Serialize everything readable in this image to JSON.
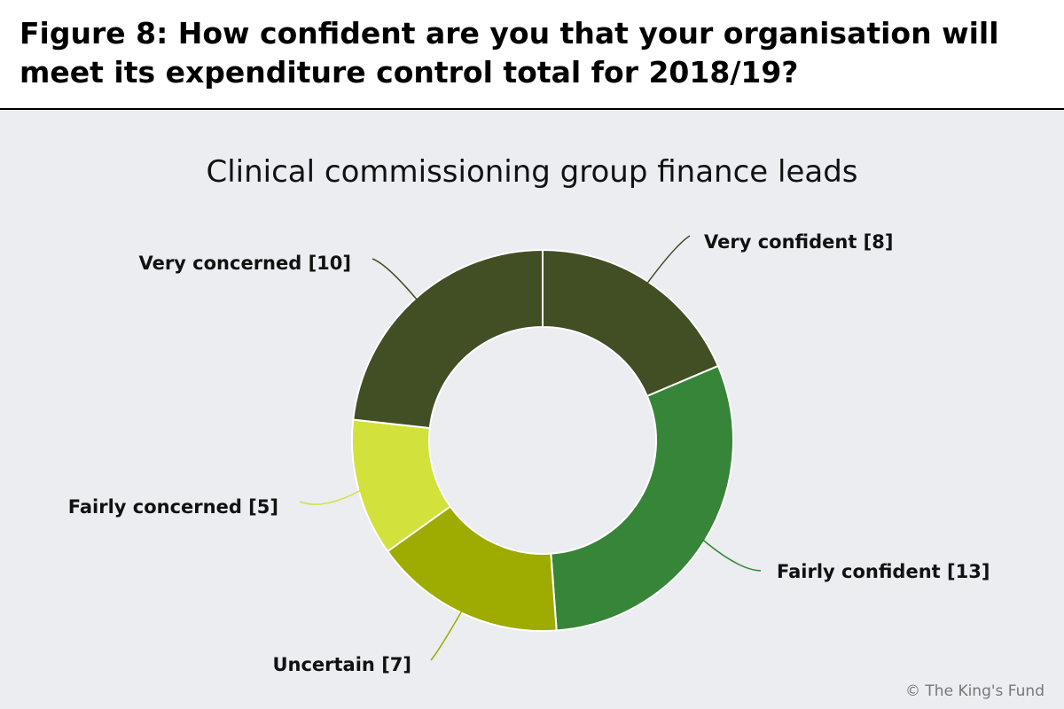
{
  "figure_title_line1": "Figure 8: How confident are you that your organisation will",
  "figure_title_line2": "meet its expenditure control total for 2018/19?",
  "chart_data": {
    "type": "pie",
    "donut": true,
    "title": "Clinical commissioning group finance leads",
    "slices": [
      {
        "label": "Very confident [8]",
        "value": 8,
        "color": "#424f25"
      },
      {
        "label": "Fairly confident [13]",
        "value": 13,
        "color": "#378538"
      },
      {
        "label": "Uncertain [7]",
        "value": 7,
        "color": "#9eab00"
      },
      {
        "label": "Fairly concerned [5]",
        "value": 5,
        "color": "#d3e13d"
      },
      {
        "label": "Very concerned [10]",
        "value": 10,
        "color": "#424f25"
      }
    ]
  },
  "credit": "© The King's Fund"
}
